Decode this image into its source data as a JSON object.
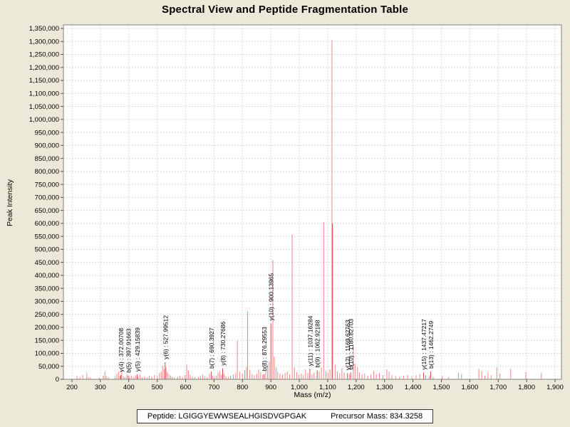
{
  "title": "Spectral View and Peptide Fragmentation Table",
  "footer": {
    "peptide_text": "Peptide: LGIGGYEWWSEALHGISDVGPGAK",
    "precursor_text": "Precursor Mass: 834.3258"
  },
  "chart_data": {
    "type": "bar",
    "title": "Spectral View and Peptide Fragmentation Table",
    "xlabel": "Mass (m/z)",
    "ylabel": "Peak Intensity",
    "xlim": [
      170,
      1925
    ],
    "ylim": [
      0,
      1350000
    ],
    "grid": true,
    "x_ticks": [
      200,
      300,
      400,
      500,
      600,
      700,
      800,
      900,
      1000,
      1100,
      1200,
      1300,
      1400,
      1500,
      1600,
      1700,
      1800,
      1900
    ],
    "y_tick_step": 50000,
    "y_tick_max": 1350000,
    "colors": {
      "page_background": "#ece9d8",
      "plot_background": "#ffffff",
      "grid": "#d9d9d9",
      "plot_border": "#808080",
      "tick": "#555555",
      "peak_light": "#f08686",
      "peak_dark": "#d14b4b",
      "label_text": "#000000"
    },
    "labeled_peaks": [
      {
        "label": "y(4) : 372.00708",
        "mz": 372.00708,
        "intensity": 17000
      },
      {
        "label": "b(5) : 397.91663",
        "mz": 397.91663,
        "intensity": 14000
      },
      {
        "label": "y(5) : 429.15839",
        "mz": 429.15839,
        "intensity": 19000
      },
      {
        "label": "y(6) : 527.99512",
        "mz": 527.99512,
        "intensity": 66000
      },
      {
        "label": "b(7) : 690.3927",
        "mz": 690.3927,
        "intensity": 30000
      },
      {
        "label": "y(8) : 730.27686",
        "mz": 730.27686,
        "intensity": 42000
      },
      {
        "label": "b(8) : 876.29553",
        "mz": 876.29553,
        "intensity": 20000
      },
      {
        "label": "y(10) : 900.13965",
        "mz": 900.13965,
        "intensity": 215000
      },
      {
        "label": "y(11) : 1037.16284",
        "mz": 1037.16284,
        "intensity": 40000
      },
      {
        "label": "b(9) : 1062.92188",
        "mz": 1062.92188,
        "intensity": 34000
      },
      {
        "label": "y(12) : 1169.62763",
        "mz": 1169.62763,
        "intensity": 24000
      },
      {
        "label": "b(10) : 1180.82703",
        "mz": 1180.82703,
        "intensity": 27000
      },
      {
        "label": "y(15) : 1437.47217",
        "mz": 1437.47217,
        "intensity": 26000
      },
      {
        "label": "b(13) : 1462.2749",
        "mz": 1462.2749,
        "intensity": 30000
      }
    ],
    "peaks": [
      [
        218,
        12000
      ],
      [
        228,
        8000
      ],
      [
        238,
        16000
      ],
      [
        252,
        24000
      ],
      [
        258,
        9000
      ],
      [
        265,
        7000
      ],
      [
        296,
        7000
      ],
      [
        310,
        14000
      ],
      [
        316,
        30000
      ],
      [
        321,
        12000
      ],
      [
        328,
        8000
      ],
      [
        352,
        10000
      ],
      [
        358,
        22000
      ],
      [
        364,
        30000
      ],
      [
        369,
        13000
      ],
      [
        375,
        36000
      ],
      [
        381,
        12000
      ],
      [
        387,
        8000
      ],
      [
        393,
        18000
      ],
      [
        403,
        10000
      ],
      [
        410,
        14000
      ],
      [
        418,
        9000
      ],
      [
        424,
        15000
      ],
      [
        433,
        11000
      ],
      [
        440,
        18000
      ],
      [
        448,
        8000
      ],
      [
        456,
        12000
      ],
      [
        464,
        9000
      ],
      [
        472,
        13000
      ],
      [
        481,
        10000
      ],
      [
        490,
        16000
      ],
      [
        500,
        12000
      ],
      [
        508,
        24000
      ],
      [
        514,
        30000
      ],
      [
        519,
        52000
      ],
      [
        524,
        40000
      ],
      [
        531,
        46000
      ],
      [
        535,
        28000
      ],
      [
        541,
        20000
      ],
      [
        547,
        14000
      ],
      [
        553,
        10000
      ],
      [
        561,
        8000
      ],
      [
        572,
        10000
      ],
      [
        580,
        14000
      ],
      [
        589,
        10000
      ],
      [
        598,
        16000
      ],
      [
        604,
        56000
      ],
      [
        610,
        34000
      ],
      [
        616,
        18000
      ],
      [
        624,
        10000
      ],
      [
        633,
        8000
      ],
      [
        645,
        9000
      ],
      [
        652,
        13000
      ],
      [
        660,
        18000
      ],
      [
        668,
        12000
      ],
      [
        676,
        10000
      ],
      [
        684,
        22000
      ],
      [
        695,
        12000
      ],
      [
        701,
        10000
      ],
      [
        708,
        14000
      ],
      [
        714,
        26000
      ],
      [
        720,
        32000
      ],
      [
        726,
        18000
      ],
      [
        735,
        22000
      ],
      [
        742,
        12000
      ],
      [
        750,
        10000
      ],
      [
        758,
        14000
      ],
      [
        768,
        18000
      ],
      [
        776,
        24000
      ],
      [
        782,
        148000
      ],
      [
        790,
        30000
      ],
      [
        800,
        22000
      ],
      [
        808,
        36000
      ],
      [
        814,
        48000
      ],
      [
        818,
        262000
      ],
      [
        826,
        36000
      ],
      [
        834,
        20000
      ],
      [
        842,
        16000
      ],
      [
        850,
        22000
      ],
      [
        857,
        38000
      ],
      [
        864,
        28000
      ],
      [
        871,
        18000
      ],
      [
        882,
        30000
      ],
      [
        888,
        56000
      ],
      [
        894,
        70000
      ],
      [
        907,
        458000
      ],
      [
        912,
        88000
      ],
      [
        918,
        46000
      ],
      [
        924,
        30000
      ],
      [
        932,
        22000
      ],
      [
        941,
        18000
      ],
      [
        950,
        24000
      ],
      [
        958,
        30000
      ],
      [
        966,
        20000
      ],
      [
        975,
        558000
      ],
      [
        983,
        46000
      ],
      [
        991,
        28000
      ],
      [
        999,
        18000
      ],
      [
        1007,
        22000
      ],
      [
        1014,
        16000
      ],
      [
        1022,
        38000
      ],
      [
        1030,
        24000
      ],
      [
        1045,
        20000
      ],
      [
        1052,
        26000
      ],
      [
        1070,
        30000
      ],
      [
        1078,
        46000
      ],
      [
        1086,
        605000
      ],
      [
        1094,
        32000
      ],
      [
        1101,
        24000
      ],
      [
        1108,
        38000
      ],
      [
        1115,
        1305000
      ],
      [
        1117,
        600000,
        "d"
      ],
      [
        1126,
        56000
      ],
      [
        1134,
        30000
      ],
      [
        1142,
        24000
      ],
      [
        1150,
        42000
      ],
      [
        1158,
        26000
      ],
      [
        1176,
        20000
      ],
      [
        1190,
        128000
      ],
      [
        1196,
        60000
      ],
      [
        1205,
        46000
      ],
      [
        1212,
        26000
      ],
      [
        1221,
        18000
      ],
      [
        1230,
        22000
      ],
      [
        1241,
        14000
      ],
      [
        1252,
        18000
      ],
      [
        1262,
        32000
      ],
      [
        1271,
        20000
      ],
      [
        1282,
        24000
      ],
      [
        1294,
        16000
      ],
      [
        1308,
        38000
      ],
      [
        1316,
        30000
      ],
      [
        1326,
        16000
      ],
      [
        1339,
        12000
      ],
      [
        1353,
        10000
      ],
      [
        1367,
        14000
      ],
      [
        1381,
        16000
      ],
      [
        1396,
        12000
      ],
      [
        1411,
        16000
      ],
      [
        1424,
        20000
      ],
      [
        1445,
        16000
      ],
      [
        1457,
        12000
      ],
      [
        1471,
        10000
      ],
      [
        1503,
        12000
      ],
      [
        1525,
        8000
      ],
      [
        1560,
        26000
      ],
      [
        1571,
        20000
      ],
      [
        1632,
        40000
      ],
      [
        1642,
        32000
      ],
      [
        1653,
        14000
      ],
      [
        1664,
        28000
      ],
      [
        1675,
        16000
      ],
      [
        1695,
        46000
      ],
      [
        1706,
        22000
      ],
      [
        1744,
        40000
      ],
      [
        1797,
        28000
      ],
      [
        1852,
        24000
      ]
    ]
  }
}
